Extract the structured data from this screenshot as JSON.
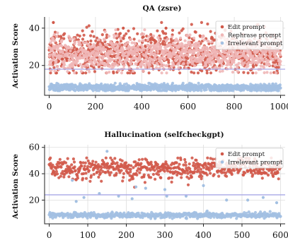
{
  "chart_data": [
    {
      "type": "scatter",
      "title": "QA (zsre)",
      "ylabel": "Activation Score",
      "xlim": [
        -20,
        1020
      ],
      "ylim": [
        4,
        46
      ],
      "xticks": [
        0,
        200,
        400,
        600,
        800,
        1000
      ],
      "xtick_labels": [
        "0",
        "200",
        "400",
        "600",
        "800",
        "1000"
      ],
      "yticks": [
        20,
        40
      ],
      "ytick_labels": [
        "20",
        "40"
      ],
      "threshold": 18,
      "legend_position": "top-right",
      "grid": true,
      "series": [
        {
          "name": "Edit prompt",
          "color": "#d1594a",
          "count": 1000,
          "n": 1000,
          "mean": 27,
          "spread": 5.5,
          "min": 16,
          "max": 43,
          "outliers": [
            [
              18,
              43
            ],
            [
              320,
              40
            ],
            [
              505,
              40
            ]
          ]
        },
        {
          "name": "Rephrase prompt",
          "color": "#f0b7b7",
          "count": 1000,
          "n": 1000,
          "mean": 26,
          "spread": 4.5,
          "min": 16,
          "max": 40
        },
        {
          "name": "Irrelevant prompt",
          "color": "#a3c0e2",
          "count": 1000,
          "n": 1000,
          "mean": 8.2,
          "spread": 1.0,
          "min": 6.5,
          "max": 10.5
        }
      ]
    },
    {
      "type": "scatter",
      "title": "Hallucination (selfcheckgpt)",
      "ylabel": "Activation Score",
      "xlim": [
        -12,
        612
      ],
      "ylim": [
        2,
        62
      ],
      "xticks": [
        0,
        100,
        200,
        300,
        400,
        500,
        600
      ],
      "xtick_labels": [
        "0",
        "100",
        "200",
        "300",
        "400",
        "500",
        "600"
      ],
      "yticks": [
        20,
        40,
        60
      ],
      "ytick_labels": [
        "20",
        "40",
        "60"
      ],
      "threshold": 24,
      "legend_position": "top-right",
      "grid": true,
      "series": [
        {
          "name": "Edit prompt",
          "color": "#d1594a",
          "count": 600,
          "n": 600,
          "mean": 44,
          "spread": 4.0,
          "min": 29,
          "max": 52
        },
        {
          "name": "Irrelevant prompt",
          "color": "#a3c0e2",
          "count": 600,
          "n": 600,
          "mean": 8.5,
          "spread": 1.0,
          "min": 6,
          "max": 12,
          "outliers": [
            [
              150,
              57
            ],
            [
              60,
              35
            ],
            [
              225,
              30
            ],
            [
              250,
              29
            ],
            [
              305,
              23
            ],
            [
              300,
              28
            ],
            [
              355,
              23
            ],
            [
              555,
              22
            ],
            [
              400,
              31
            ],
            [
              130,
              25
            ],
            [
              460,
              20
            ],
            [
              215,
              21
            ],
            [
              90,
              22
            ],
            [
              590,
              18
            ],
            [
              515,
              20
            ],
            [
              70,
              19
            ],
            [
              180,
              23
            ]
          ]
        }
      ]
    }
  ],
  "colors": {
    "threshold": "#a9a7e6",
    "grid": "#dddddd"
  }
}
